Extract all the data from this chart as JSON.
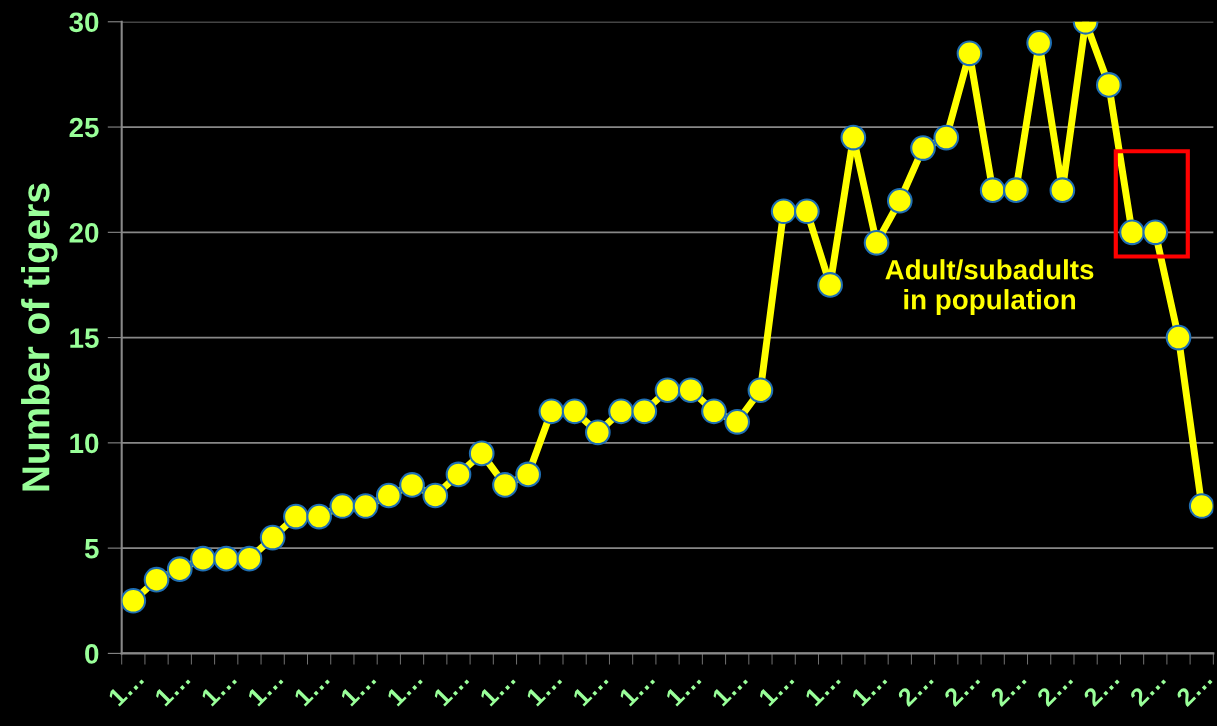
{
  "chart_data": {
    "type": "line",
    "ylabel": "Number of tigers",
    "categories": [
      "1…",
      null,
      "1…",
      null,
      "1…",
      null,
      "1…",
      null,
      "1…",
      null,
      "1…",
      null,
      "1…",
      null,
      "1…",
      null,
      "1…",
      null,
      "1…",
      null,
      "1…",
      null,
      "1…",
      null,
      "1…",
      null,
      "1…",
      null,
      "1…",
      null,
      "1…",
      null,
      "1…",
      null,
      "2…",
      null,
      "2…",
      null,
      "2…",
      null,
      "2…",
      null,
      "2…",
      null,
      "2…",
      null,
      "2…"
    ],
    "series": [
      {
        "color": "#ffff00",
        "values": [
          2.5,
          3.5,
          4,
          4.5,
          4.5,
          4.5,
          5.5,
          6.5,
          6.5,
          7,
          7,
          7.5,
          8,
          7.5,
          8.5,
          9.5,
          8,
          8.5,
          11.5,
          11.5,
          10.5,
          11.5,
          11.5,
          12.5,
          12.5,
          11.5,
          11,
          12.5,
          21,
          21,
          17.5,
          24.5,
          19.5,
          21.5,
          24,
          24.5,
          28.5,
          22,
          22,
          29,
          22,
          30,
          27,
          20,
          20,
          15,
          7
        ]
      }
    ],
    "ylim": [
      0,
      30
    ],
    "yticks": [
      0,
      5,
      10,
      15,
      20,
      25,
      30
    ],
    "grid": "y",
    "marker": "circle",
    "line_style": "solid",
    "legend": false,
    "annotations": [
      "Adult/subadults\nin population"
    ]
  }
}
